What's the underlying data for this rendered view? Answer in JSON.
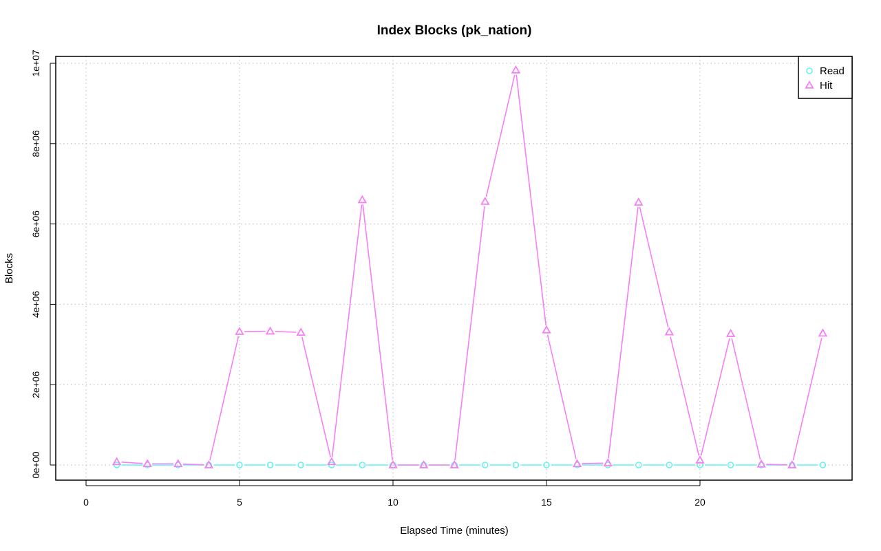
{
  "chart_data": {
    "type": "line",
    "title": "Index Blocks (pk_nation)",
    "xlabel": "Elapsed Time (minutes)",
    "ylabel": "Blocks",
    "xlim": [
      0,
      24
    ],
    "ylim": [
      0,
      10000000
    ],
    "xticks": [
      0,
      5,
      10,
      15,
      20
    ],
    "xtick_labels": [
      "0",
      "5",
      "10",
      "15",
      "20"
    ],
    "yticks": [
      0,
      2000000,
      4000000,
      6000000,
      8000000,
      10000000
    ],
    "ytick_labels": [
      "0e+00",
      "2e+06",
      "4e+06",
      "6e+06",
      "8e+06",
      "1e+07"
    ],
    "grid": true,
    "legend_position": "top-right",
    "x": [
      1,
      2,
      3,
      4,
      5,
      6,
      7,
      8,
      9,
      10,
      11,
      12,
      13,
      14,
      15,
      16,
      17,
      18,
      19,
      20,
      21,
      22,
      23,
      24
    ],
    "series": [
      {
        "name": "Read",
        "marker": "circle",
        "color": "#5ff5f5",
        "values": [
          0,
          0,
          0,
          0,
          0,
          0,
          0,
          0,
          0,
          0,
          0,
          0,
          0,
          0,
          0,
          0,
          0,
          0,
          0,
          0,
          0,
          0,
          0,
          0
        ]
      },
      {
        "name": "Hit",
        "marker": "triangle",
        "color": "#f57ff5",
        "values": [
          80000,
          30000,
          30000,
          0,
          3320000,
          3330000,
          3300000,
          80000,
          6600000,
          0,
          0,
          0,
          6560000,
          9830000,
          3360000,
          30000,
          50000,
          6540000,
          3310000,
          120000,
          3270000,
          20000,
          0,
          3280000
        ]
      }
    ]
  }
}
